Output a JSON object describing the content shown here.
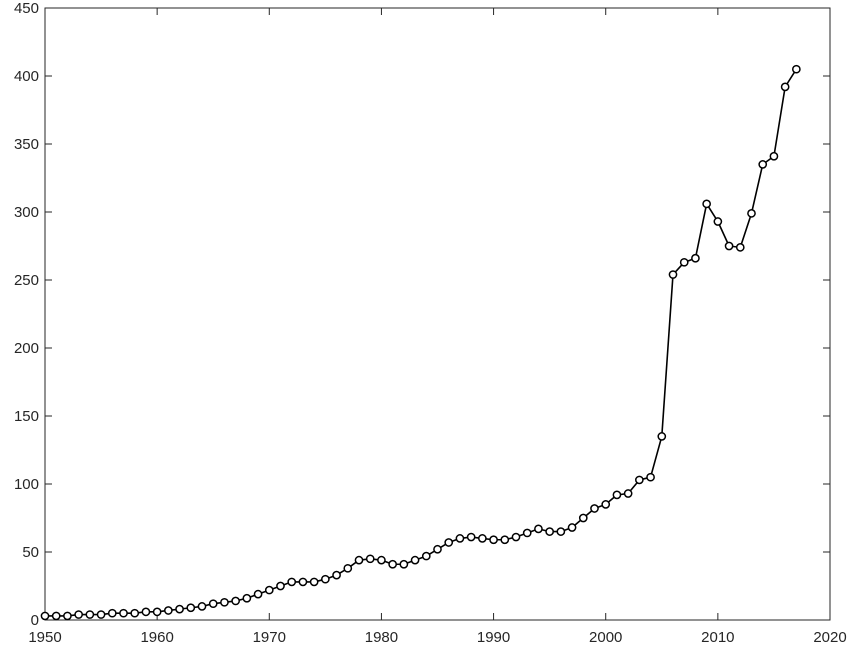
{
  "chart_data": {
    "type": "line",
    "title": "",
    "xlabel": "",
    "ylabel": "",
    "xlim": [
      1950,
      2020
    ],
    "ylim": [
      0,
      450
    ],
    "x_ticks": [
      1950,
      1960,
      1970,
      1980,
      1990,
      2000,
      2010,
      2020
    ],
    "y_ticks": [
      0,
      50,
      100,
      150,
      200,
      250,
      300,
      350,
      400,
      450
    ],
    "grid": false,
    "legend": "none",
    "line_color": "#000000",
    "marker": "open-circle",
    "series": [
      {
        "x": [
          1950,
          1951,
          1952,
          1953,
          1954,
          1955,
          1956,
          1957,
          1958,
          1959,
          1960,
          1961,
          1962,
          1963,
          1964,
          1965,
          1966,
          1967,
          1968,
          1969,
          1970,
          1971,
          1972,
          1973,
          1974,
          1975,
          1976,
          1977,
          1978,
          1979,
          1980,
          1981,
          1982,
          1983,
          1984,
          1985,
          1986,
          1987,
          1988,
          1989,
          1990,
          1991,
          1992,
          1993,
          1994,
          1995,
          1996,
          1997,
          1998,
          1999,
          2000,
          2001,
          2002,
          2003,
          2004,
          2005,
          2006,
          2007,
          2008,
          2009,
          2010,
          2011,
          2012,
          2013,
          2014,
          2015,
          2016,
          2017
        ],
        "y": [
          3,
          3,
          3,
          4,
          4,
          4,
          5,
          5,
          5,
          6,
          6,
          7,
          8,
          9,
          10,
          12,
          13,
          14,
          16,
          19,
          22,
          25,
          28,
          28,
          28,
          30,
          33,
          38,
          44,
          45,
          44,
          41,
          41,
          44,
          47,
          52,
          57,
          60,
          61,
          60,
          59,
          59,
          61,
          64,
          67,
          65,
          65,
          68,
          75,
          82,
          85,
          92,
          93,
          103,
          105,
          135,
          254,
          263,
          266,
          306,
          293,
          275,
          274,
          299,
          335,
          341,
          392,
          405
        ]
      }
    ]
  }
}
